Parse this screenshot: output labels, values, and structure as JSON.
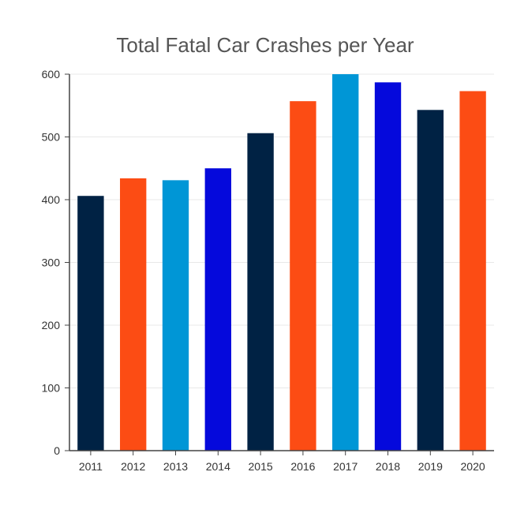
{
  "chart_data": {
    "type": "bar",
    "title": "Total Fatal Car Crashes per Year",
    "xlabel": "",
    "ylabel": "",
    "categories": [
      "2011",
      "2012",
      "2013",
      "2014",
      "2015",
      "2016",
      "2017",
      "2018",
      "2019",
      "2020"
    ],
    "values": [
      406,
      434,
      431,
      450,
      506,
      557,
      600,
      587,
      543,
      573
    ],
    "bar_colors": [
      "#002244",
      "#FC4C14",
      "#0096D6",
      "#0509DC",
      "#002244",
      "#FC4C14",
      "#0096D6",
      "#0509DC",
      "#002244",
      "#FC4C14"
    ],
    "ylim": [
      0,
      600
    ],
    "yticks": [
      0,
      100,
      200,
      300,
      400,
      500,
      600
    ],
    "grid": true,
    "gridline_color": "#e8e8e8"
  }
}
